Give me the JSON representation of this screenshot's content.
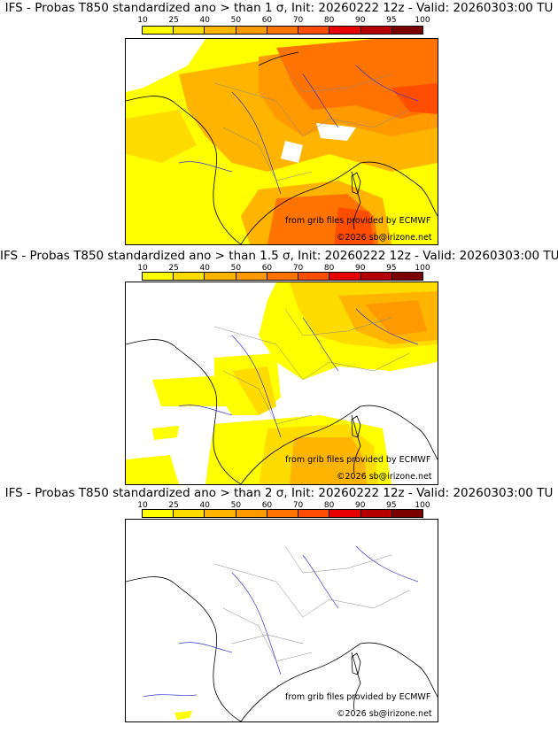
{
  "colorbar": {
    "ticks": [
      "10",
      "25",
      "40",
      "50",
      "60",
      "70",
      "80",
      "90",
      "95",
      "100"
    ],
    "colors": [
      "#ffff00",
      "#ffdc00",
      "#ffb400",
      "#ff9900",
      "#ff7300",
      "#ff4d00",
      "#e60000",
      "#b40000",
      "#7d0000"
    ]
  },
  "panels": [
    {
      "title": "IFS - Probas T850  standardized ano > than 1 σ, Init: 20260222 12z - Valid: 20260303:00 TU",
      "credit_source": "from grib files provided by ECMWF",
      "credit_copyright": "©2026 sb@irizone.net",
      "fill_level": 0.55
    },
    {
      "title": "IFS - Probas T850  standardized ano > than 1.5 σ, Init: 20260222 12z - Valid: 20260303:00 TU",
      "credit_source": "from grib files provided by ECMWF",
      "credit_copyright": "©2026 sb@irizone.net",
      "fill_level": 0.3
    },
    {
      "title": "IFS - Probas T850  standardized ano > than 2 σ, Init: 20260222 12z - Valid: 20260303:00 TU",
      "credit_source": "from grib files provided by ECMWF",
      "credit_copyright": "©2026 sb@irizone.net",
      "fill_level": 0.0
    }
  ]
}
